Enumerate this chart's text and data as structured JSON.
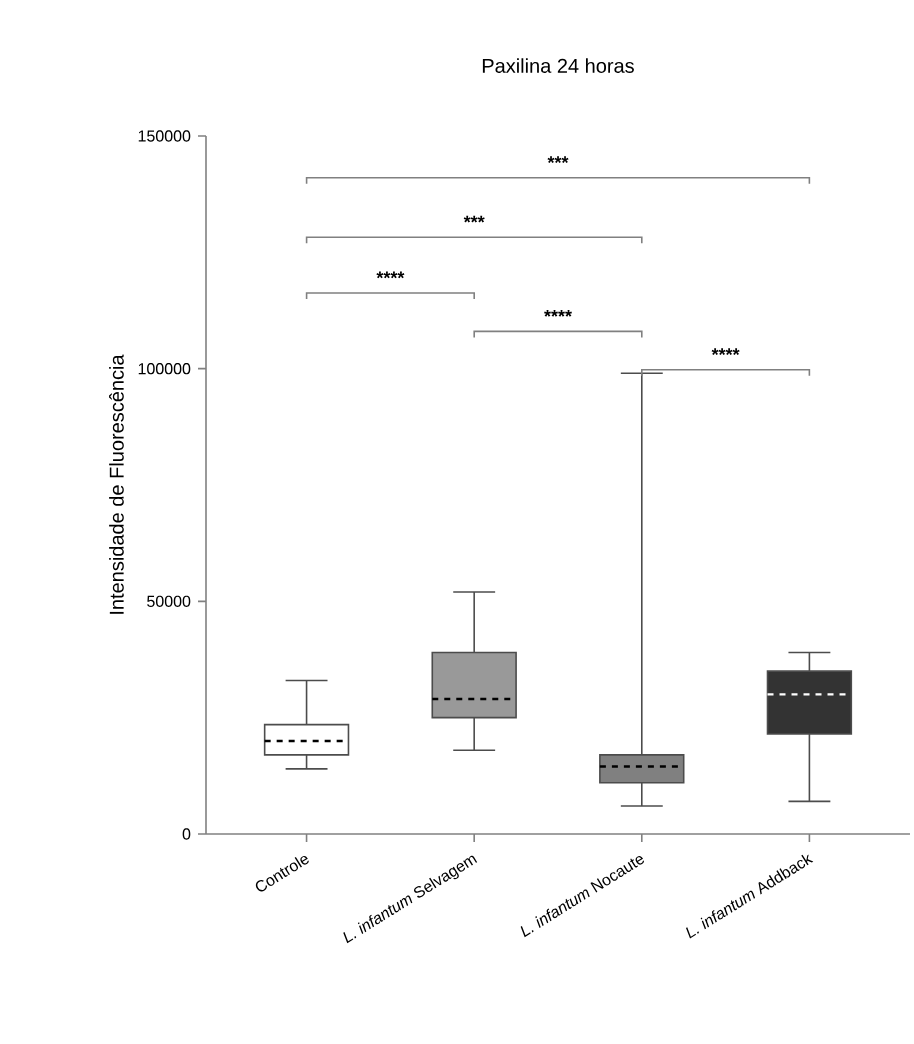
{
  "chart_data": {
    "type": "box",
    "title": "Paxilina 24 horas",
    "ylabel": "Intensidade de Fluorescência",
    "categories": [
      "Controle",
      "*L. infantum* Selvagem",
      "*L. infantum* Nocaute",
      "*L. infantum* Addback"
    ],
    "boxes": [
      {
        "low": 14000,
        "q1": 17000,
        "median": 20000,
        "q3": 23500,
        "high": 33000
      },
      {
        "low": 18000,
        "q1": 25000,
        "median": 29000,
        "q3": 39000,
        "high": 52000
      },
      {
        "low": 6000,
        "q1": 11000,
        "median": 14500,
        "q3": 17000,
        "high": 99000
      },
      {
        "low": 7000,
        "q1": 21500,
        "median": 30000,
        "q3": 35000,
        "high": 39000
      }
    ],
    "colors": [
      "#ffffff",
      "#999999",
      "#808080",
      "#333333"
    ],
    "ylim": [
      0,
      150000
    ],
    "yticks": [
      0,
      50000,
      100000,
      150000
    ],
    "annotations": [
      "***",
      "***",
      "****",
      "****",
      "****"
    ]
  }
}
